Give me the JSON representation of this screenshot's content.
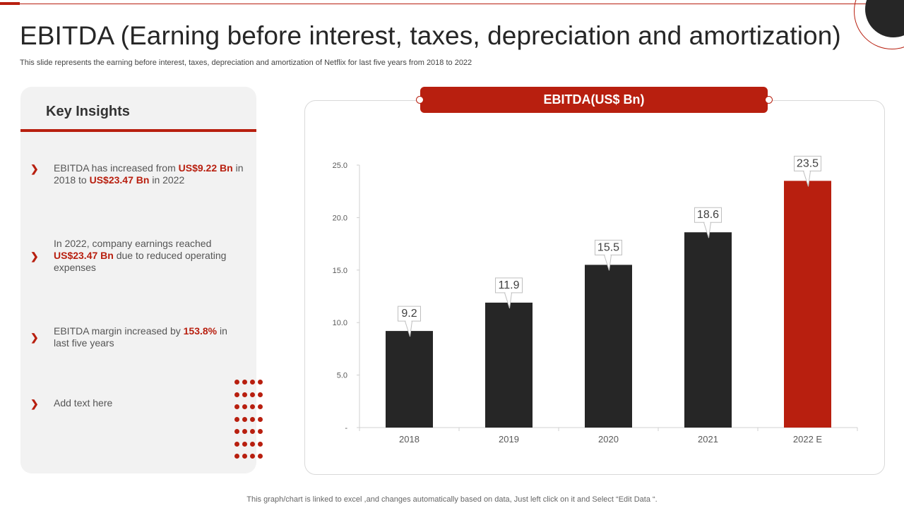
{
  "slide": {
    "title": "EBITDA (Earning before interest, taxes, depreciation and amortization)",
    "subtitle": "This slide represents the earning before interest, taxes, depreciation and amortization of Netflix for last five years from 2018 to 2022",
    "footer": "This graph/chart is linked to excel ,and changes automatically based on data, Just left click on it and Select “Edit Data “."
  },
  "insights": {
    "heading": "Key Insights",
    "items": [
      {
        "parts": [
          "EBITDA has increased from ",
          "US$9.22 Bn",
          " in 2018 to ",
          "US$23.47 Bn",
          " in 2022"
        ]
      },
      {
        "parts": [
          "In 2022, company earnings reached ",
          "US$23.47 Bn",
          " due to reduced operating expenses"
        ]
      },
      {
        "parts": [
          "EBITDA margin increased by ",
          "153.8%",
          " in last five years"
        ]
      },
      {
        "parts": [
          "Add text here"
        ]
      }
    ]
  },
  "colors": {
    "accent": "#b81f0f",
    "dark_bar": "#262626",
    "panel": "#f2f2f2"
  },
  "chart_data": {
    "type": "bar",
    "title": "EBITDA(US$ Bn)",
    "categories": [
      "2018",
      "2019",
      "2020",
      "2021",
      "2022 E"
    ],
    "values": [
      9.2,
      11.9,
      15.5,
      18.6,
      23.5
    ],
    "data_labels": [
      "9.2",
      "11.9",
      "15.5",
      "18.6",
      "23.5"
    ],
    "highlight_index": 4,
    "ylim": [
      0,
      25
    ],
    "yticks": [
      0,
      5,
      10,
      15,
      20,
      25
    ],
    "ytick_labels": [
      "-",
      "5.0",
      "10.0",
      "15.0",
      "20.0",
      "25.0"
    ],
    "xlabel": "",
    "ylabel": "",
    "grid": false
  }
}
